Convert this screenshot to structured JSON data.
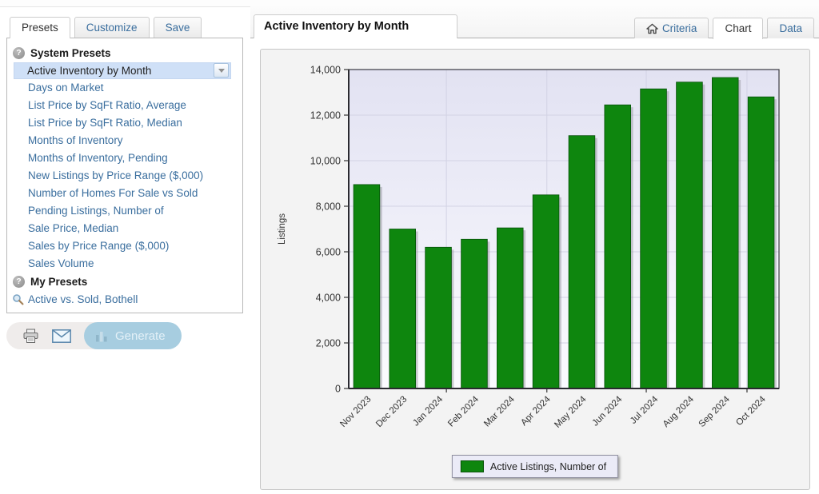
{
  "sidebar": {
    "tabs": [
      {
        "label": "Presets",
        "active": true
      },
      {
        "label": "Customize",
        "active": false
      },
      {
        "label": "Save",
        "active": false
      }
    ],
    "system_header": "System Presets",
    "selected_item": "Active Inventory by Month",
    "system_items": [
      "Days on Market",
      "List Price by SqFt Ratio, Average",
      "List Price by SqFt Ratio, Median",
      "Months of Inventory",
      "Months of Inventory, Pending",
      "New Listings by Price Range ($,000)",
      "Number of Homes For Sale vs Sold",
      "Pending Listings, Number of",
      "Sale Price, Median",
      "Sales by Price Range ($,000)",
      "Sales Volume"
    ],
    "my_header": "My Presets",
    "my_items": [
      "Active vs. Sold, Bothell"
    ],
    "toolbar": {
      "print_icon": "printer-icon",
      "email_icon": "envelope-icon",
      "generate_label": "Generate"
    }
  },
  "main": {
    "title": "Active Inventory by Month",
    "tabs": [
      {
        "label": "Criteria",
        "icon": "home-icon",
        "active": false
      },
      {
        "label": "Chart",
        "active": true
      },
      {
        "label": "Data",
        "active": false
      }
    ]
  },
  "chart_data": {
    "type": "bar",
    "title": "Active Inventory by Month",
    "categories": [
      "Nov 2023",
      "Dec 2023",
      "Jan 2024",
      "Feb 2024",
      "Mar 2024",
      "Apr 2024",
      "May 2024",
      "Jun 2024",
      "Jul 2024",
      "Aug 2024",
      "Sep 2024",
      "Oct 2024"
    ],
    "values": [
      8950,
      7000,
      6200,
      6550,
      7050,
      8500,
      11100,
      12450,
      13150,
      13450,
      13650,
      12800
    ],
    "xlabel": "",
    "ylabel": "Listings",
    "ylim": [
      0,
      14000
    ],
    "ytick_step": 2000,
    "grid": true,
    "legend": [
      "Active Listings, Number of"
    ],
    "legend_position": "bottom",
    "bar_color": "#0e860e",
    "bar_border_color": "#07520a"
  },
  "colors": {
    "link_blue": "#3a6e9e",
    "selected_row_bg": "#cfe0f7",
    "plot_bg_top": "#e2e2f2",
    "plot_bg_bottom": "#fbfbff",
    "generate_btn_bg": "#a7cde0"
  }
}
